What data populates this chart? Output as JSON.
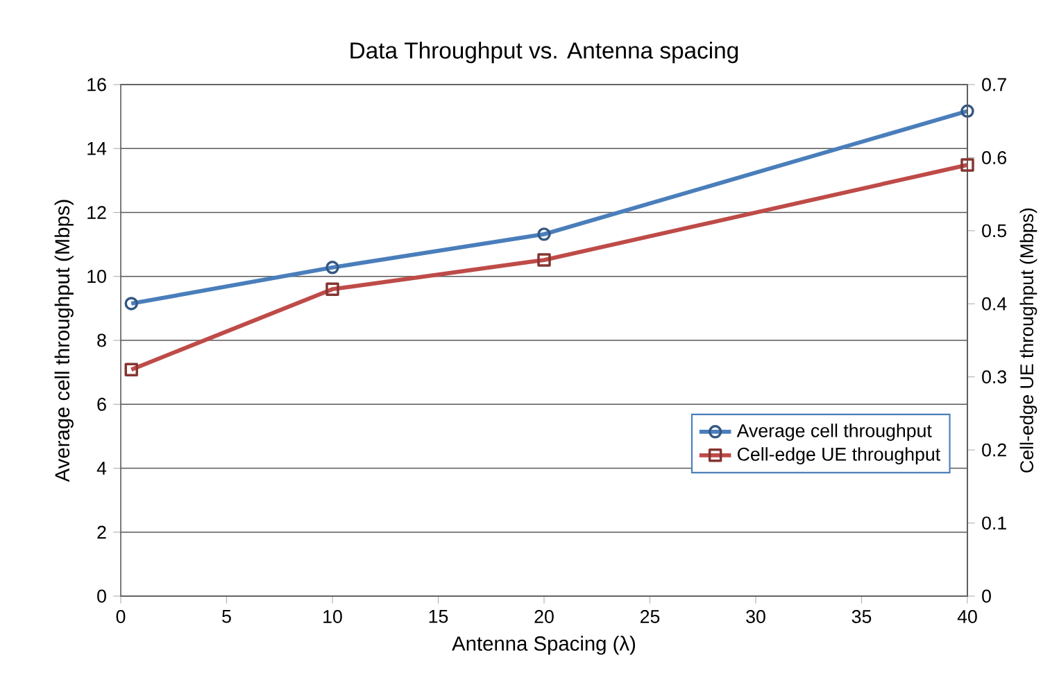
{
  "chart_data": {
    "type": "line",
    "title": "Data Throughput vs. Antenna spacing",
    "xlabel": "Antenna Spacing (λ)",
    "ylabel": "Average cell throughput (Mbps)",
    "y2label": "Cell-edge UE throughput (Mbps)",
    "x": [
      0.5,
      10,
      20,
      40
    ],
    "series": [
      {
        "name": "Average cell throughput",
        "color": "#4a7ebb",
        "marker": "circle",
        "values": [
          9.15,
          10.28,
          11.32,
          15.17
        ]
      },
      {
        "name": "Cell-edge UE throughput",
        "color": "#be4b48",
        "marker": "square",
        "axis": "y2",
        "values": [
          0.31,
          0.42,
          0.46,
          0.59
        ]
      }
    ],
    "xlim": [
      0,
      40
    ],
    "xticks": [
      0,
      5,
      10,
      15,
      20,
      25,
      30,
      35,
      40
    ],
    "ylim": [
      0,
      16
    ],
    "yticks": [
      0,
      2,
      4,
      6,
      8,
      10,
      12,
      14,
      16
    ],
    "y2lim": [
      0,
      0.7
    ],
    "y2ticks": [
      0,
      0.1,
      0.2,
      0.3,
      0.4,
      0.5,
      0.6,
      0.7
    ],
    "grid": "y",
    "legend": "bottom right",
    "line_style": "solid"
  }
}
